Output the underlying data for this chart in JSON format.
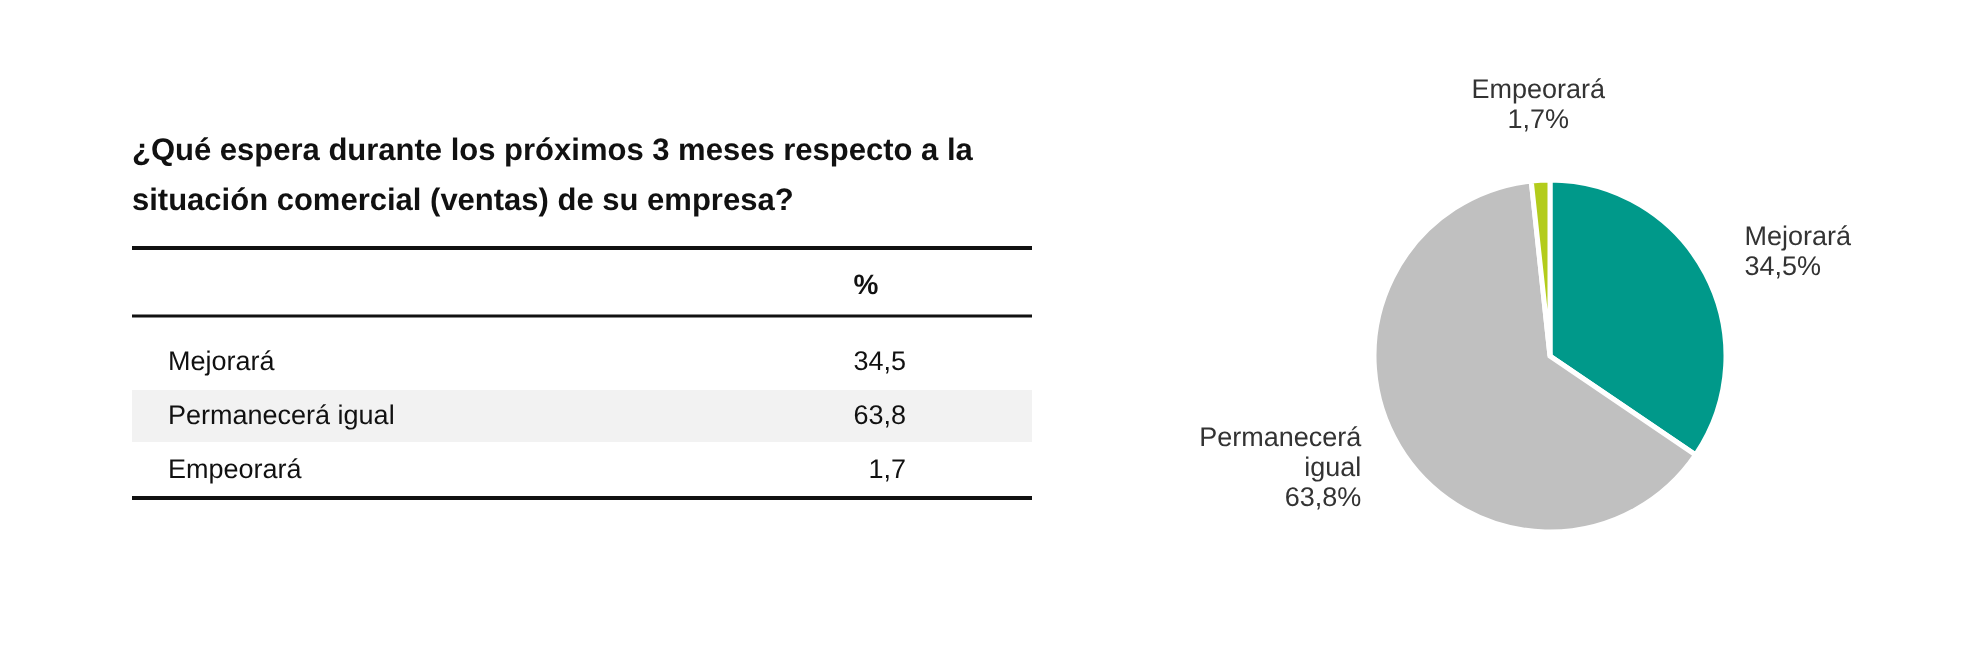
{
  "chart_data": {
    "type": "pie",
    "title": "¿Qué espera durante los próximos 3 meses respecto a la situación comercial (ventas) de su empresa?",
    "categories": [
      "Mejorará",
      "Permanecerá igual",
      "Empeorará"
    ],
    "values": [
      34.5,
      63.8,
      1.7
    ],
    "colors": [
      "#00998a",
      "#c0c0c0",
      "#b3cc1c"
    ],
    "value_labels": [
      "34,5%",
      "63,8%",
      "1,7%"
    ],
    "annotations": [
      "%",
      "34,5",
      "63,8",
      "1,7"
    ]
  }
}
